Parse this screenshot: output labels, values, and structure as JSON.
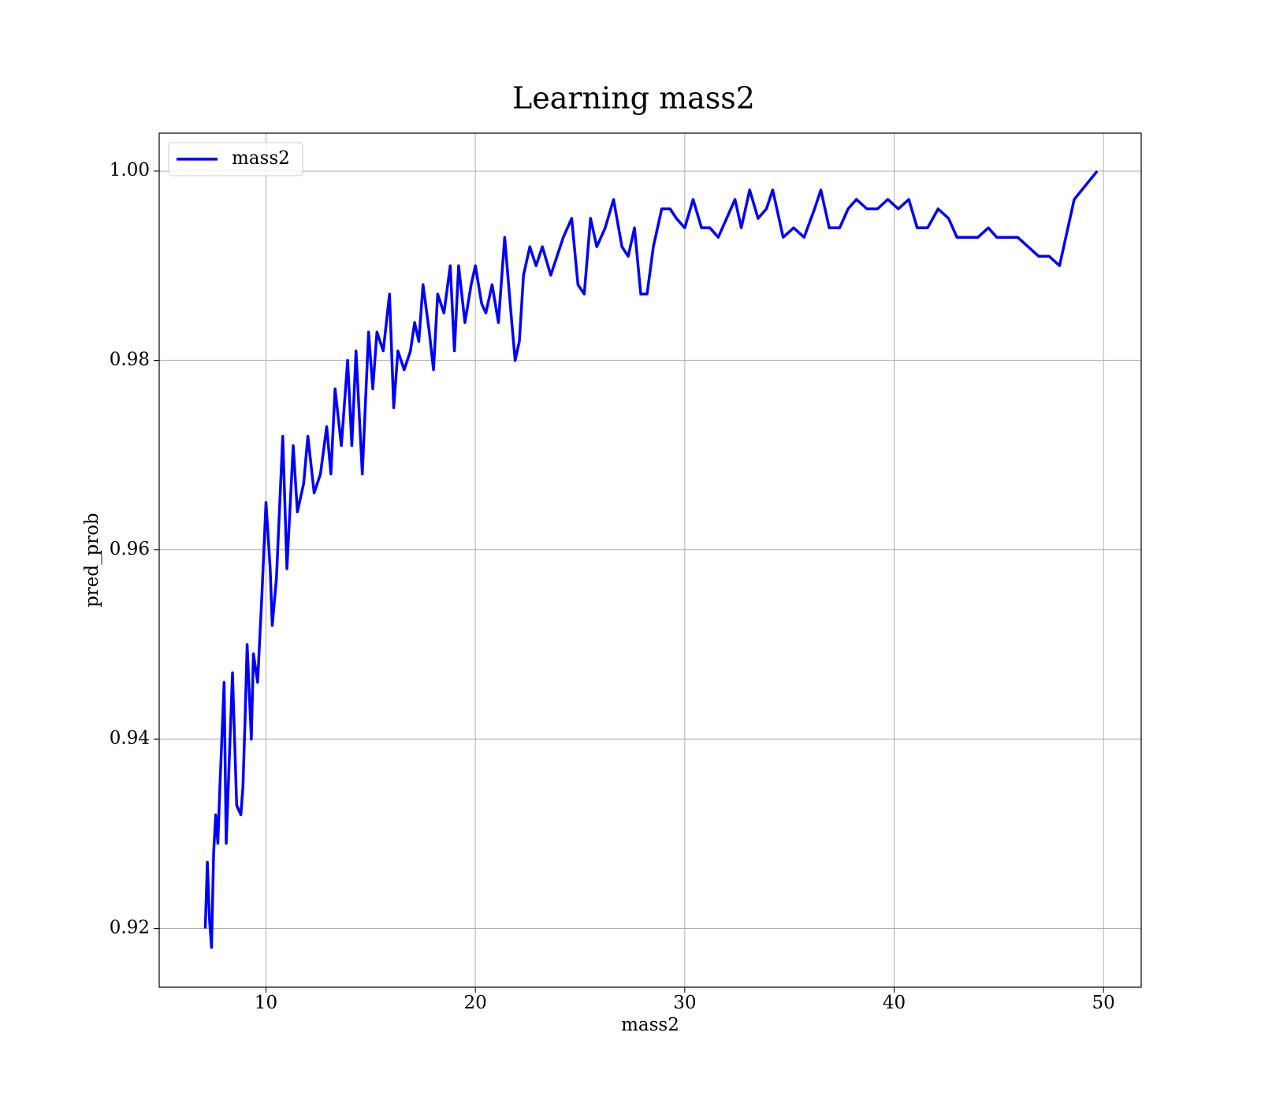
{
  "chart_data": {
    "type": "line",
    "title": "Learning mass2",
    "x_label": "mass2",
    "y_label": "pred_prob",
    "xlim": [
      4.9,
      51.8
    ],
    "ylim": [
      0.9138,
      1.004
    ],
    "xticks": [
      10,
      20,
      30,
      40,
      50
    ],
    "yticks": [
      0.92,
      0.94,
      0.96,
      0.98,
      {
        "value": 1.0,
        "label": "1.00"
      }
    ],
    "grid": true,
    "legend": "upper-left",
    "x": [
      7.1,
      7.2,
      7.3,
      7.4,
      7.5,
      7.6,
      7.7,
      7.8,
      8.0,
      8.1,
      8.3,
      8.4,
      8.6,
      8.8,
      8.9,
      9.0,
      9.1,
      9.3,
      9.4,
      9.6,
      9.8,
      10.0,
      10.2,
      10.3,
      10.5,
      10.8,
      11.0,
      11.3,
      11.5,
      11.8,
      12.0,
      12.3,
      12.6,
      12.9,
      13.1,
      13.3,
      13.6,
      13.9,
      14.1,
      14.3,
      14.6,
      14.9,
      15.1,
      15.3,
      15.6,
      15.9,
      16.1,
      16.3,
      16.6,
      16.9,
      17.1,
      17.3,
      17.5,
      17.8,
      18.0,
      18.2,
      18.5,
      18.8,
      19.0,
      19.2,
      19.5,
      19.8,
      20.0,
      20.3,
      20.5,
      20.8,
      21.1,
      21.4,
      21.7,
      21.9,
      22.1,
      22.3,
      22.6,
      22.9,
      23.2,
      23.6,
      23.9,
      24.2,
      24.6,
      24.9,
      25.2,
      25.5,
      25.8,
      26.2,
      26.6,
      27.0,
      27.3,
      27.6,
      27.9,
      28.2,
      28.5,
      28.9,
      29.3,
      29.6,
      30.0,
      30.4,
      30.8,
      31.2,
      31.6,
      32.0,
      32.4,
      32.7,
      33.1,
      33.5,
      33.9,
      34.2,
      34.7,
      35.2,
      35.7,
      36.2,
      36.5,
      36.9,
      37.4,
      37.8,
      38.2,
      38.7,
      39.2,
      39.7,
      40.2,
      40.7,
      41.1,
      41.6,
      42.1,
      42.6,
      43.0,
      43.5,
      44.0,
      44.5,
      44.9,
      45.4,
      45.9,
      46.4,
      46.9,
      47.4,
      47.9,
      48.6,
      49.7
    ],
    "series": [
      {
        "name": "mass2",
        "color": "#0000ff",
        "values": [
          0.92,
          0.927,
          0.921,
          0.918,
          0.928,
          0.932,
          0.929,
          0.935,
          0.946,
          0.929,
          0.941,
          0.947,
          0.933,
          0.932,
          0.935,
          0.942,
          0.95,
          0.94,
          0.949,
          0.946,
          0.955,
          0.965,
          0.958,
          0.952,
          0.957,
          0.972,
          0.958,
          0.971,
          0.964,
          0.967,
          0.972,
          0.966,
          0.968,
          0.973,
          0.968,
          0.977,
          0.971,
          0.98,
          0.971,
          0.981,
          0.968,
          0.983,
          0.977,
          0.983,
          0.981,
          0.987,
          0.975,
          0.981,
          0.979,
          0.981,
          0.984,
          0.982,
          0.988,
          0.983,
          0.979,
          0.987,
          0.985,
          0.99,
          0.981,
          0.99,
          0.984,
          0.988,
          0.99,
          0.986,
          0.985,
          0.988,
          0.984,
          0.993,
          0.985,
          0.98,
          0.982,
          0.989,
          0.992,
          0.99,
          0.992,
          0.989,
          0.991,
          0.993,
          0.995,
          0.988,
          0.987,
          0.995,
          0.992,
          0.994,
          0.997,
          0.992,
          0.991,
          0.994,
          0.987,
          0.987,
          0.992,
          0.996,
          0.996,
          0.995,
          0.994,
          0.997,
          0.994,
          0.994,
          0.993,
          0.995,
          0.997,
          0.994,
          0.998,
          0.995,
          0.996,
          0.998,
          0.993,
          0.994,
          0.993,
          0.996,
          0.998,
          0.994,
          0.994,
          0.996,
          0.997,
          0.996,
          0.996,
          0.997,
          0.996,
          0.997,
          0.994,
          0.994,
          0.996,
          0.995,
          0.993,
          0.993,
          0.993,
          0.994,
          0.993,
          0.993,
          0.993,
          0.992,
          0.991,
          0.991,
          0.99,
          0.997,
          1.0
        ]
      }
    ]
  }
}
